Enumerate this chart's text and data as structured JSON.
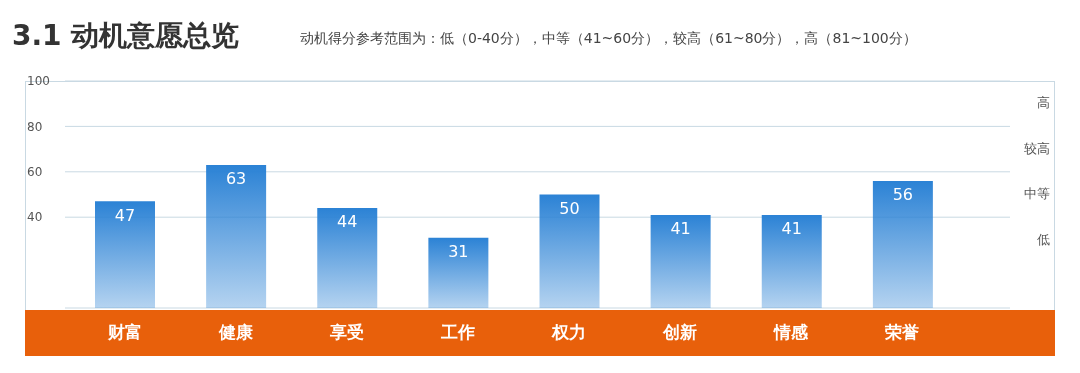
{
  "chart_data": {
    "type": "bar",
    "title": "3.1 动机意愿总览",
    "subtitle": "动机得分参考范围为：低（0-40分），中等（41~60分），较高（61~80分），高（81~100分）",
    "categories": [
      "财富",
      "健康",
      "享受",
      "工作",
      "权力",
      "创新",
      "情感",
      "荣誉"
    ],
    "values": [
      47,
      63,
      44,
      31,
      50,
      41,
      41,
      56
    ],
    "color": "#2b82d5",
    "data_labels": true,
    "ylim": [
      0,
      100
    ],
    "yticks": [
      40,
      60,
      80,
      100
    ],
    "grid": "y",
    "annotations": [
      "高",
      "较高",
      "中等",
      "低"
    ]
  }
}
